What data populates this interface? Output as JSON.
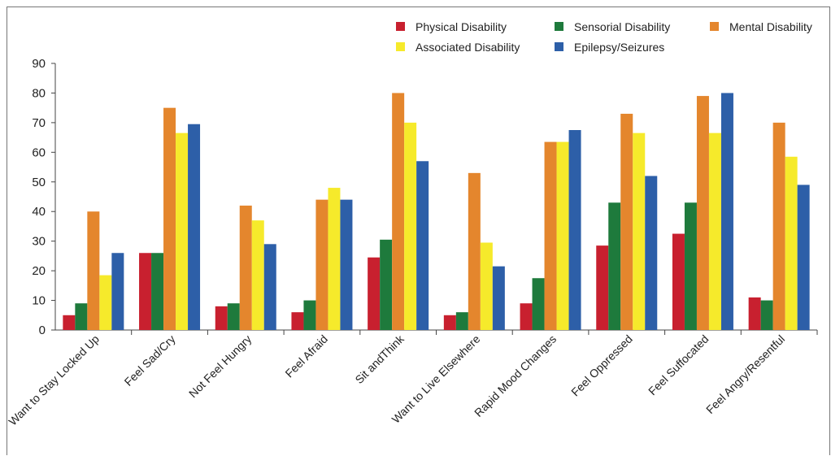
{
  "chart_data": {
    "type": "bar",
    "title": "",
    "xlabel": "",
    "ylabel": "",
    "ylim": [
      0,
      90
    ],
    "yticks": [
      0,
      10,
      20,
      30,
      40,
      50,
      60,
      70,
      80,
      90
    ],
    "grid": false,
    "legend_position": "top-right",
    "categories": [
      "Want to Stay Locked Up",
      "Feel Sad/Cry",
      "Not Feel Hungry",
      "Feel Afraid",
      "Sit andThink",
      "Want to Live Elsewhere",
      "Rapid Mood Changes",
      "Feel Oppressed",
      "Feel Suffocated",
      "Feel Angry/Resentful"
    ],
    "series": [
      {
        "name": "Physical Disability",
        "color": "#c8202f",
        "values": [
          5,
          26,
          8,
          6,
          24.5,
          5,
          9,
          28.5,
          32.5,
          11
        ]
      },
      {
        "name": "Sensorial Disability",
        "color": "#1e7a3c",
        "values": [
          9,
          26,
          9,
          10,
          30.5,
          6,
          17.5,
          43,
          43,
          10
        ]
      },
      {
        "name": "Mental Disability",
        "color": "#e4862d",
        "values": [
          40,
          75,
          42,
          44,
          80,
          53,
          63.5,
          73,
          79,
          70
        ]
      },
      {
        "name": "Associated Disability",
        "color": "#f6ea2b",
        "values": [
          18.5,
          66.5,
          37,
          48,
          70,
          29.5,
          63.5,
          66.5,
          66.5,
          58.5
        ]
      },
      {
        "name": "Epilepsy/Seizures",
        "color": "#2d5fa8",
        "values": [
          26,
          69.5,
          29,
          44,
          57,
          21.5,
          67.5,
          52,
          80,
          49
        ]
      }
    ],
    "legend_order": [
      "Physical Disability",
      "Sensorial Disability",
      "Mental Disability",
      "Associated Disability",
      "Epilepsy/Seizures"
    ]
  }
}
